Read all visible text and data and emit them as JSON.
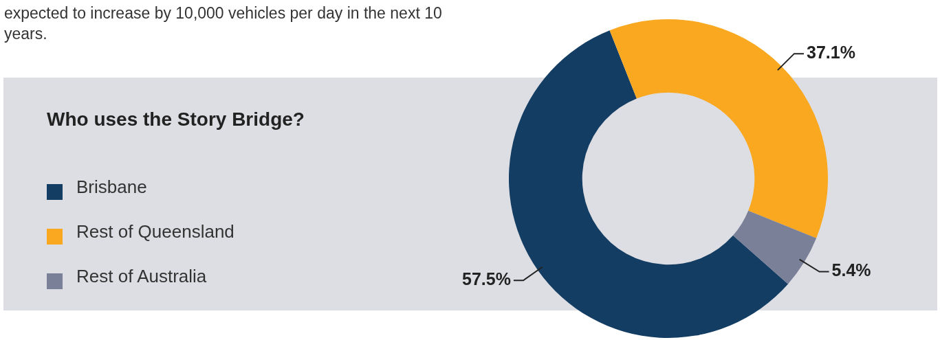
{
  "chart_data": {
    "type": "donut",
    "title": "Who uses the Story Bridge?",
    "categories": [
      "Brisbane",
      "Rest of Queensland",
      "Rest of Australia"
    ],
    "values": [
      57.5,
      37.1,
      5.4
    ],
    "colors": [
      "#143d63",
      "#f9a81f",
      "#7b8099"
    ],
    "value_labels": [
      "57.5%",
      "37.1%",
      "5.4%"
    ],
    "legend": "left",
    "annotations": [
      "expected to increase by 10,000 vehicles per day in the next 10 years."
    ]
  }
}
